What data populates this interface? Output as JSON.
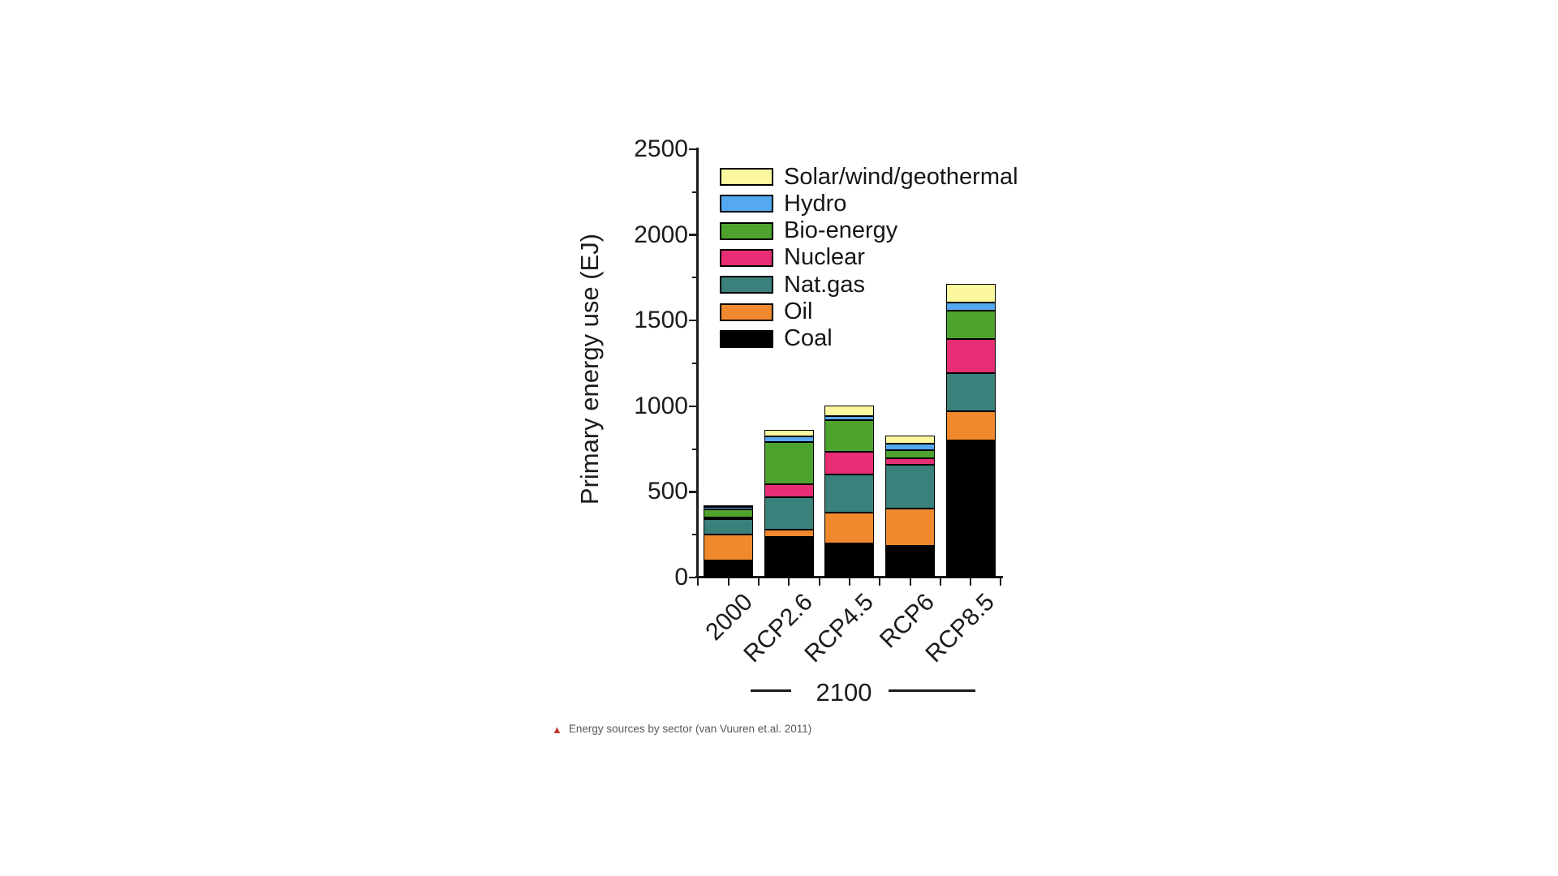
{
  "page": {
    "background": "#ffffff"
  },
  "chart_data": {
    "type": "bar",
    "stacked": true,
    "title": "",
    "ylabel": "Primary energy use (EJ)",
    "unit": "EJ",
    "ylim": [
      0,
      2500
    ],
    "yticks": [
      0,
      500,
      1000,
      1500,
      2000,
      2500
    ],
    "yticks_minor": [
      250,
      750,
      1250,
      1750,
      2250
    ],
    "grid": false,
    "legend_position": "top-left-inside",
    "categories": [
      "2000",
      "RCP2.6",
      "RCP4.5",
      "RCP6",
      "RCP8.5"
    ],
    "group_label": "2100",
    "group_members": [
      "RCP2.6",
      "RCP4.5",
      "RCP6",
      "RCP8.5"
    ],
    "series": [
      {
        "name": "Coal",
        "color": "#000000",
        "values": [
          100,
          235,
          200,
          185,
          800
        ]
      },
      {
        "name": "Oil",
        "color": "#F0892D",
        "values": [
          150,
          45,
          180,
          218,
          170
        ]
      },
      {
        "name": "Nat.gas",
        "color": "#3A807B",
        "values": [
          90,
          190,
          222,
          255,
          222
        ]
      },
      {
        "name": "Nuclear",
        "color": "#E72E74",
        "values": [
          10,
          75,
          132,
          38,
          200
        ]
      },
      {
        "name": "Bio-energy",
        "color": "#4EA32F",
        "values": [
          48,
          245,
          185,
          47,
          165
        ]
      },
      {
        "name": "Hydro",
        "color": "#54A9F0",
        "values": [
          8,
          32,
          24,
          38,
          47
        ]
      },
      {
        "name": "Solar/wind/geothermal",
        "color": "#FBF8A0",
        "values": [
          5,
          38,
          62,
          48,
          110
        ]
      }
    ],
    "approx_totals": [
      411,
      860,
      1005,
      829,
      1714
    ]
  },
  "caption": {
    "marker": "▲",
    "text": "Energy sources by sector (van Vuuren et.al. 2011)"
  }
}
